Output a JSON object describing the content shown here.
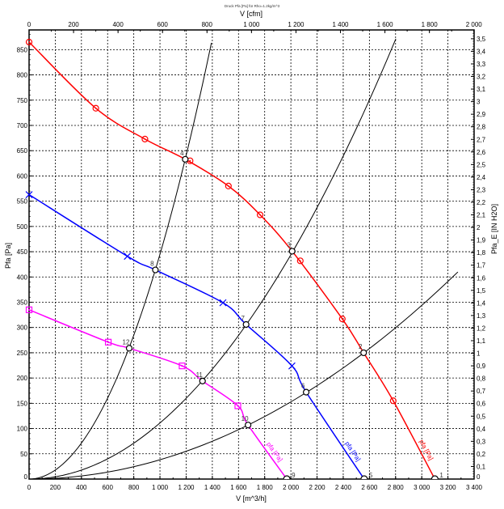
{
  "chart_data": {
    "type": "line",
    "title": "Druck Pfa [Pa] für Rho=1.2kg/m^3",
    "xlabel": "V [m^3/h]",
    "x2label": "V [cfm]",
    "ylabel": "Pfa [Pa]",
    "y2label": "Pfa_E [IN H2O]",
    "xlim": [
      0,
      3400
    ],
    "ylim": [
      0,
      889
    ],
    "x2lim": [
      0,
      2001
    ],
    "y2lim": [
      0,
      3.57
    ],
    "grid": true,
    "x_ticks": [
      "0",
      "200",
      "400",
      "600",
      "800",
      "1 000",
      "1 200",
      "1 400",
      "1 600",
      "1 800",
      "2 000",
      "2 200",
      "2 400",
      "2 600",
      "2 800",
      "3 000",
      "3 200",
      "3 400"
    ],
    "x2_ticks": [
      "0",
      "200",
      "400",
      "600",
      "800",
      "1 000",
      "1 200",
      "1 400",
      "1 600",
      "1 800",
      "2 000"
    ],
    "y_ticks": [
      "0",
      "50",
      "100",
      "150",
      "200",
      "250",
      "300",
      "350",
      "400",
      "450",
      "500",
      "550",
      "600",
      "650",
      "700",
      "750",
      "800",
      "850"
    ],
    "y2_ticks": [
      "0",
      "0,1",
      "0,2",
      "0,3",
      "0,4",
      "0,5",
      "0,6",
      "0,7",
      "0,8",
      "0,9",
      "1",
      "1,1",
      "1,2",
      "1,3",
      "1,4",
      "1,5",
      "1,6",
      "1,7",
      "1,8",
      "1,9",
      "2",
      "2,1",
      "2,2",
      "2,3",
      "2,4",
      "2,5",
      "2,6",
      "2,7",
      "2,8",
      "2,9",
      "3",
      "3,1",
      "3,2",
      "3,3",
      "3,4",
      "3,5"
    ],
    "fan_curves": [
      {
        "label": "pfa [Pa]",
        "color": "#ff0000",
        "marker": "circle-dot",
        "curve": [
          [
            0,
            865
          ],
          [
            510,
            734
          ],
          [
            885,
            673
          ],
          [
            1193,
            633
          ],
          [
            1523,
            580
          ],
          [
            1765,
            523
          ],
          [
            2010,
            451
          ],
          [
            2393,
            317
          ],
          [
            2556,
            250
          ],
          [
            2782,
            155
          ],
          [
            3100,
            0
          ]
        ],
        "markers": [
          [
            0,
            865
          ],
          [
            510,
            734
          ],
          [
            885,
            673
          ],
          [
            1230,
            630
          ],
          [
            1523,
            580
          ],
          [
            1765,
            523
          ],
          [
            2072,
            432
          ],
          [
            2393,
            317
          ],
          [
            2782,
            155
          ]
        ]
      },
      {
        "label": "pfa [Pa]",
        "color": "#0000ff",
        "marker": "x",
        "curve": [
          [
            0,
            563
          ],
          [
            751,
            441
          ],
          [
            965,
            414
          ],
          [
            1481,
            349
          ],
          [
            1658,
            306
          ],
          [
            2008,
            224
          ],
          [
            2117,
            172
          ],
          [
            2560,
            0
          ]
        ],
        "markers": [
          [
            0,
            563
          ],
          [
            751,
            441
          ],
          [
            1481,
            349
          ],
          [
            2008,
            224
          ]
        ]
      },
      {
        "label": "pfa [Pa]",
        "color": "#ff00ff",
        "marker": "square-dot",
        "curve": [
          [
            0,
            335
          ],
          [
            605,
            271
          ],
          [
            765,
            259
          ],
          [
            1169,
            224
          ],
          [
            1325,
            194
          ],
          [
            1595,
            145
          ],
          [
            1673,
            107
          ],
          [
            1969,
            0
          ]
        ],
        "markers": [
          [
            0,
            335
          ],
          [
            605,
            271
          ],
          [
            1169,
            224
          ],
          [
            1595,
            145
          ]
        ]
      }
    ],
    "system_curves": [
      {
        "k": 0.000445,
        "x_max": 1393,
        "color": "#000000"
      },
      {
        "k": 0.000111,
        "x_max": 2802,
        "color": "#000000"
      },
      {
        "k": 3.82e-05,
        "x_max": 3276,
        "color": "#000000"
      }
    ],
    "operating_points": [
      {
        "label": "1",
        "x": 3100,
        "y": 0
      },
      {
        "label": "2",
        "x": 2556,
        "y": 250
      },
      {
        "label": "3",
        "x": 2010,
        "y": 451
      },
      {
        "label": "4",
        "x": 1193,
        "y": 633
      },
      {
        "label": "5",
        "x": 2560,
        "y": 0
      },
      {
        "label": "6",
        "x": 2117,
        "y": 172
      },
      {
        "label": "7",
        "x": 1658,
        "y": 306
      },
      {
        "label": "8",
        "x": 965,
        "y": 414
      },
      {
        "label": "9",
        "x": 1969,
        "y": 0
      },
      {
        "label": "10",
        "x": 1673,
        "y": 107
      },
      {
        "label": "11",
        "x": 1325,
        "y": 194
      },
      {
        "label": "12",
        "x": 765,
        "y": 259
      }
    ]
  }
}
